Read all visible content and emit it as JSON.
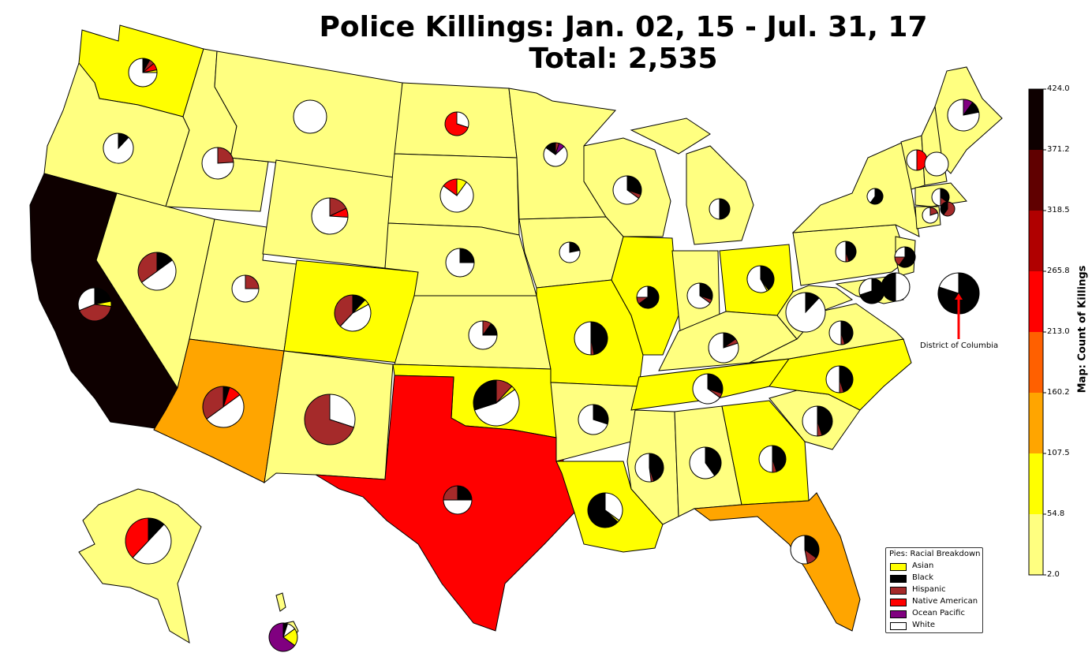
{
  "title_line1": "Police Killings: Jan. 02, 15 - Jul. 31, 17",
  "title_line2": "Total: 2,535",
  "legend": {
    "title": "Pies: Racial Breakdown",
    "items": [
      {
        "label": "Asian",
        "color": "#ffff00"
      },
      {
        "label": "Black",
        "color": "#000000"
      },
      {
        "label": "Hispanic",
        "color": "#a52a2a"
      },
      {
        "label": "Native American",
        "color": "#ff0000"
      },
      {
        "label": "Ocean Pacific",
        "color": "#800080"
      },
      {
        "label": "White",
        "color": "#ffffff"
      }
    ]
  },
  "colorbar": {
    "label": "Map: Count of Killings",
    "ticks": [
      "424.0",
      "371.2",
      "318.5",
      "265.8",
      "213.0",
      "160.2",
      "107.5",
      "54.8",
      "2.0"
    ],
    "colors": [
      "#ffff80",
      "#ffff00",
      "#ffa500",
      "#ff6000",
      "#ff0000",
      "#b00000",
      "#600000",
      "#0e0000"
    ]
  },
  "annotation": "District of Columbia",
  "map_fills": {
    "light": "#ffff80",
    "yellow": "#ffff00",
    "orange": "#ffa500",
    "red": "#ff0000",
    "dark": "#0e0000"
  }
}
